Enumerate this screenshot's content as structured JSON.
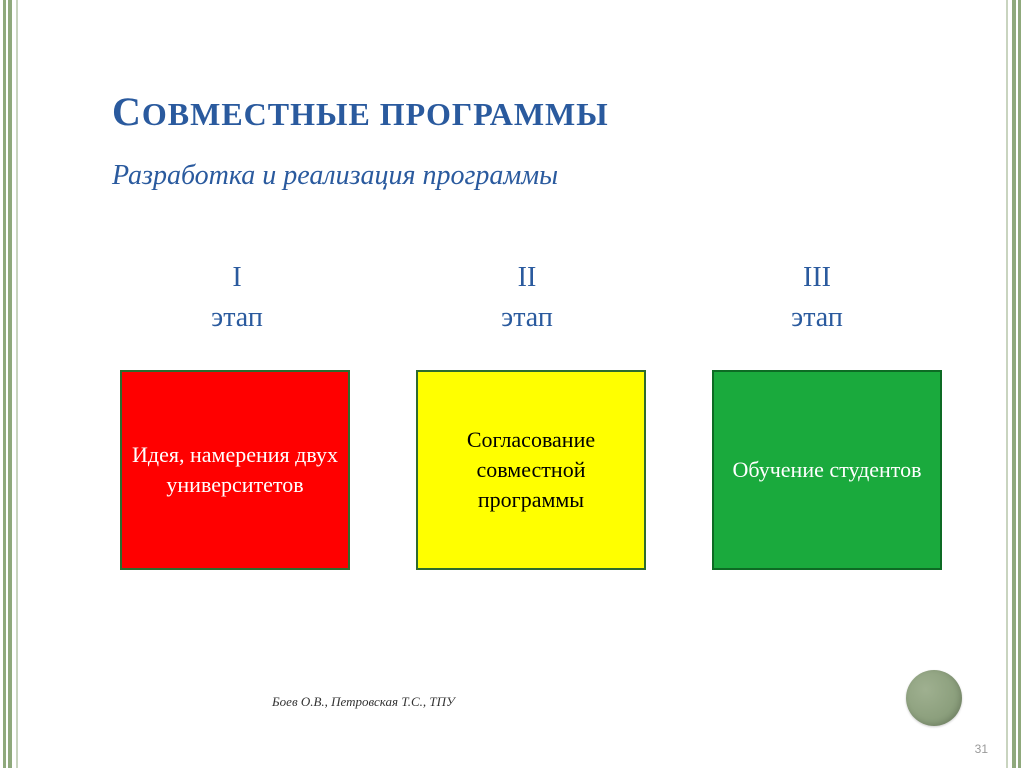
{
  "colors": {
    "title": "#2a5a9e",
    "subtitle": "#2a5a9e",
    "stage_head": "#2a5a9e",
    "footer": "#333333",
    "page_bg": "#ffffff"
  },
  "title": {
    "cap": "С",
    "rest": "ОВМЕСТНЫЕ ПРОГРАММЫ"
  },
  "subtitle": "Разработка и реализация программы",
  "stages": [
    {
      "numeral": "I",
      "label": "этап",
      "box_text": "Идея, намерения двух университетов",
      "box_bg": "#ff0000",
      "box_border": "#2e6b2e",
      "box_border_width": 2,
      "text_color": "#ffffff"
    },
    {
      "numeral": "II",
      "label": "этап",
      "box_text": "Согласование совместной программы",
      "box_bg": "#ffff00",
      "box_border": "#2e6b2e",
      "box_border_width": 2,
      "text_color": "#000000"
    },
    {
      "numeral": "III",
      "label": "этап",
      "box_text": "Обучение студентов",
      "box_bg": "#1aaa3d",
      "box_border": "#0d6b24",
      "box_border_width": 2,
      "text_color": "#ffffff"
    }
  ],
  "footer_credit": "Боев О.В., Петровская Т.С., ТПУ",
  "page_number": "31"
}
